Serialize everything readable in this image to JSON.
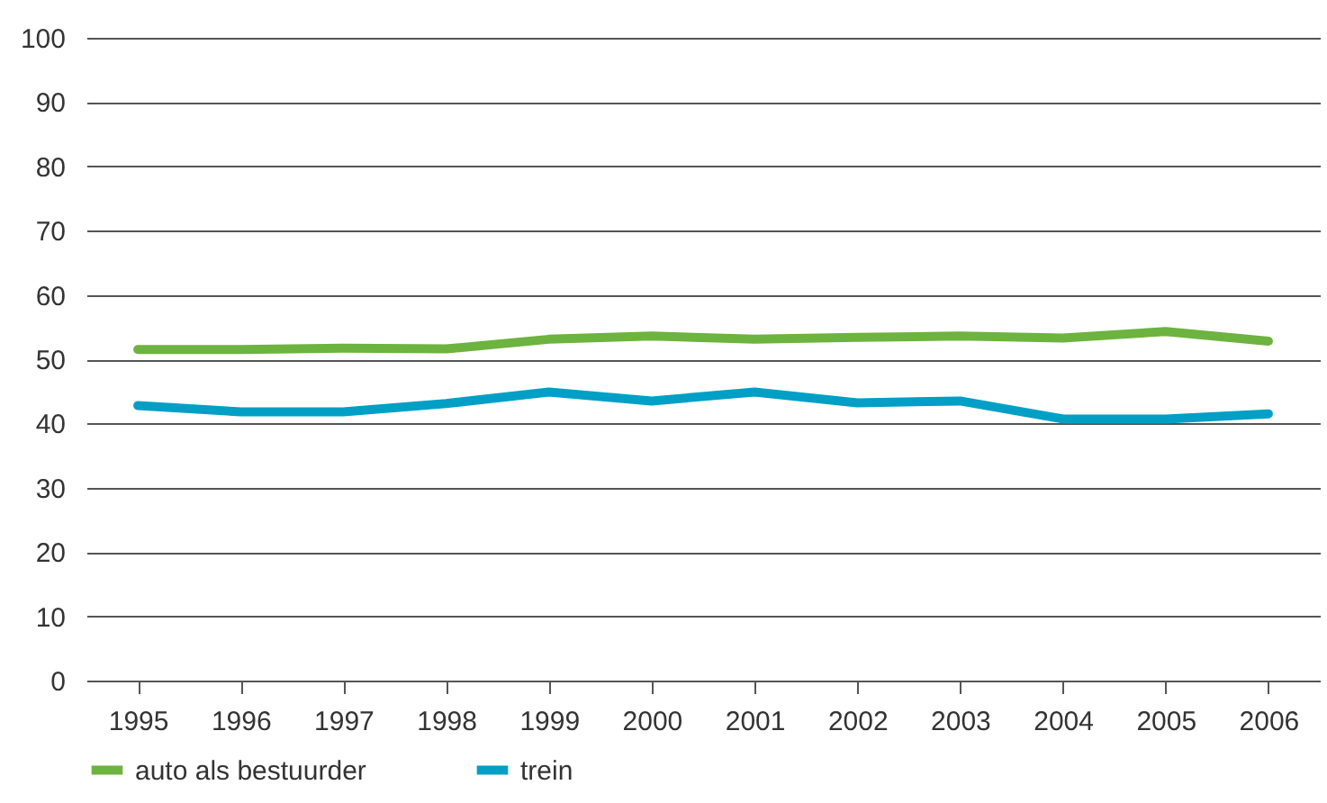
{
  "chart_data": {
    "type": "line",
    "categories": [
      "1995",
      "1996",
      "1997",
      "1998",
      "1999",
      "2000",
      "2001",
      "2002",
      "2003",
      "2004",
      "2005",
      "2006"
    ],
    "series": [
      {
        "name": "auto als bestuurder",
        "color": "#6db33f",
        "values": [
          51.5,
          51.5,
          51.7,
          51.6,
          53.1,
          53.6,
          53.1,
          53.4,
          53.6,
          53.3,
          54.3,
          52.8
        ]
      },
      {
        "name": "trein",
        "color": "#009fc6",
        "values": [
          42.8,
          41.8,
          41.8,
          43.1,
          44.9,
          43.5,
          44.9,
          43.2,
          43.5,
          40.7,
          40.7,
          41.5
        ]
      }
    ],
    "ylim": [
      0,
      100
    ],
    "yticks": [
      0,
      10,
      20,
      30,
      40,
      50,
      60,
      70,
      80,
      90,
      100
    ],
    "grid": "y",
    "legend": "bottom",
    "marker": "none",
    "line_style": "solid"
  }
}
